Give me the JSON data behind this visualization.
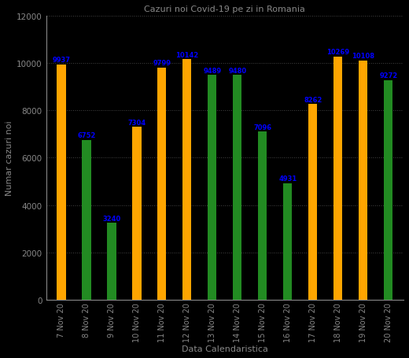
{
  "title": "Cazuri noi Covid-19 pe zi in Romania",
  "xlabel": "Data Calendaristica",
  "ylabel": "Numar cazuri noi",
  "dates": [
    "7 Nov 20",
    "8 Nov 20",
    "9 Nov 20",
    "10 Nov 20",
    "11 Nov 20",
    "12 Nov 20",
    "13 Nov 20",
    "14 Nov 20",
    "15 Nov 20",
    "16 Nov 20",
    "17 Nov 20",
    "18 Nov 20",
    "19 Nov 20",
    "20 Nov 20"
  ],
  "values": [
    9937,
    6752,
    3240,
    7304,
    9799,
    10142,
    9489,
    9480,
    7096,
    4931,
    8262,
    10269,
    10108,
    9272
  ],
  "colors": [
    "#FFA500",
    "#228B22",
    "#228B22",
    "#FFA500",
    "#FFA500",
    "#FFA500",
    "#228B22",
    "#228B22",
    "#228B22",
    "#228B22",
    "#FFA500",
    "#FFA500",
    "#FFA500",
    "#228B22"
  ],
  "ylim": [
    0,
    12000
  ],
  "yticks": [
    0,
    2000,
    4000,
    6000,
    8000,
    10000,
    12000
  ],
  "background_color": "#000000",
  "value_label_color": "#0000FF",
  "bar_width": 0.35,
  "title_color": "#888888",
  "axis_label_color": "#888888",
  "tick_label_color": "#888888",
  "grid_color": "#888888",
  "spine_color": "#888888"
}
